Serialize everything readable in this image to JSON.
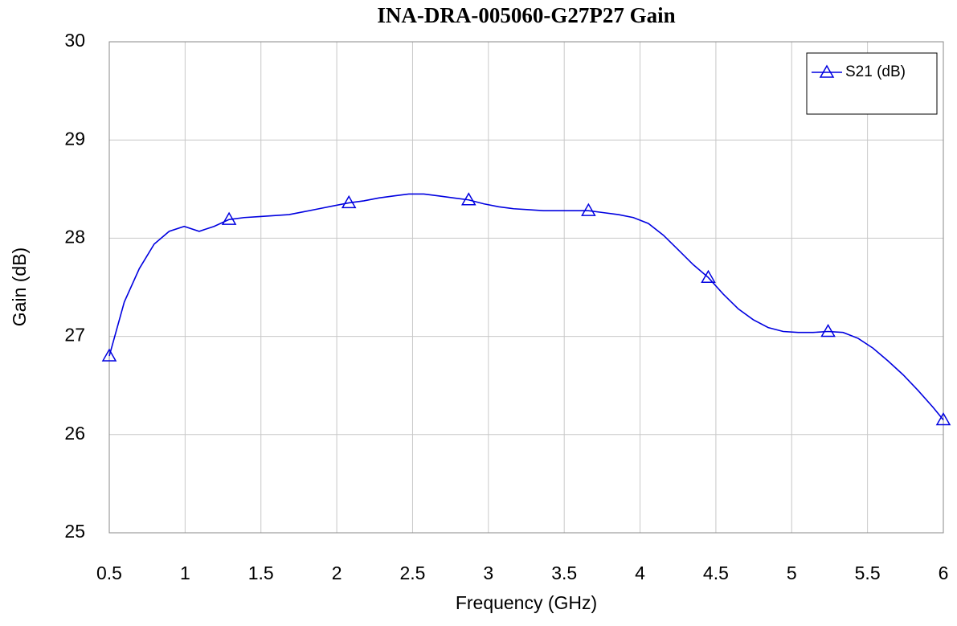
{
  "chart_data": {
    "type": "line",
    "title": "INA-DRA-005060-G27P27 Gain",
    "xlabel": "Frequency (GHz)",
    "ylabel": "Gain (dB)",
    "x": [
      0.5,
      0.599,
      0.698,
      0.796,
      0.895,
      0.994,
      1.093,
      1.191,
      1.29,
      1.389,
      1.488,
      1.586,
      1.685,
      1.784,
      1.883,
      1.981,
      2.08,
      2.179,
      2.278,
      2.376,
      2.475,
      2.574,
      2.673,
      2.771,
      2.87,
      2.969,
      3.068,
      3.166,
      3.265,
      3.364,
      3.463,
      3.561,
      3.66,
      3.759,
      3.858,
      3.956,
      4.055,
      4.154,
      4.253,
      4.351,
      4.45,
      4.549,
      4.648,
      4.746,
      4.845,
      4.944,
      5.043,
      5.141,
      5.24,
      5.339,
      5.438,
      5.536,
      5.635,
      5.734,
      5.833,
      5.931,
      6.0
    ],
    "series": [
      {
        "name": "S21 (dB)",
        "color": "#0000e0",
        "marker": "triangle",
        "values": [
          26.8,
          27.35,
          27.69,
          27.94,
          28.07,
          28.12,
          28.07,
          28.12,
          28.19,
          28.21,
          28.22,
          28.23,
          28.24,
          28.27,
          28.3,
          28.33,
          28.36,
          28.38,
          28.41,
          28.43,
          28.45,
          28.45,
          28.43,
          28.41,
          28.39,
          28.35,
          28.32,
          28.3,
          28.29,
          28.28,
          28.28,
          28.28,
          28.28,
          28.26,
          28.24,
          28.21,
          28.15,
          28.03,
          27.88,
          27.73,
          27.6,
          27.43,
          27.28,
          27.17,
          27.09,
          27.05,
          27.04,
          27.04,
          27.05,
          27.04,
          26.98,
          26.88,
          26.75,
          26.61,
          26.45,
          26.28,
          26.15
        ]
      }
    ],
    "xlim": [
      0.5,
      6
    ],
    "xticks": [
      0.5,
      1,
      1.5,
      2,
      2.5,
      3,
      3.5,
      4,
      4.5,
      5,
      5.5,
      6
    ],
    "ylim": [
      25,
      30
    ],
    "yticks": [
      25,
      26,
      27,
      28,
      29,
      30
    ],
    "grid": true,
    "legend": "upper right"
  }
}
